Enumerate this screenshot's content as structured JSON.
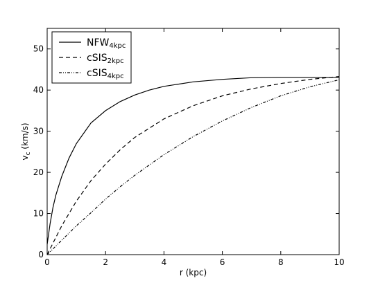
{
  "chart_data": {
    "type": "line",
    "title": "",
    "xlabel": "r (kpc)",
    "ylabel": {
      "main": "v",
      "sub": "c",
      "rest": " (km/s)"
    },
    "xlim": [
      0,
      10
    ],
    "ylim": [
      0,
      55
    ],
    "xticks": [
      "0",
      "2",
      "4",
      "6",
      "8",
      "10"
    ],
    "yticks": [
      "0",
      "10",
      "20",
      "30",
      "40",
      "50"
    ],
    "grid": false,
    "legend_position": "top-left",
    "series": [
      {
        "name": "NFW",
        "name_sub": "4kpc",
        "style": "solid",
        "x": [
          0,
          0.05,
          0.1,
          0.2,
          0.3,
          0.5,
          0.75,
          1,
          1.5,
          2,
          2.5,
          3,
          3.5,
          4,
          5,
          6,
          7,
          8,
          9,
          10
        ],
        "y": [
          2.5,
          5,
          7.5,
          11.5,
          14.5,
          19,
          23.5,
          27,
          32,
          35,
          37.2,
          38.8,
          40,
          40.9,
          42,
          42.6,
          43,
          43.1,
          43.1,
          43.1
        ]
      },
      {
        "name": "cSIS",
        "name_sub": "2kpc",
        "style": "dashed",
        "x": [
          0,
          0.25,
          0.5,
          1,
          1.5,
          2,
          2.5,
          3,
          4,
          5,
          6,
          7,
          8,
          9,
          10
        ],
        "y": [
          0,
          3.5,
          7,
          13,
          18,
          22,
          25.5,
          28.5,
          33,
          36.2,
          38.6,
          40.3,
          41.6,
          42.6,
          43.3
        ]
      },
      {
        "name": "cSIS",
        "name_sub": "4kpc",
        "style": "dashdot",
        "x": [
          0,
          0.5,
          1,
          1.5,
          2,
          2.5,
          3,
          4,
          5,
          6,
          7,
          8,
          9,
          10
        ],
        "y": [
          0,
          3.5,
          7,
          10.2,
          13.5,
          16.5,
          19.3,
          24.3,
          28.7,
          32.5,
          35.8,
          38.6,
          40.8,
          42.5
        ]
      }
    ]
  }
}
